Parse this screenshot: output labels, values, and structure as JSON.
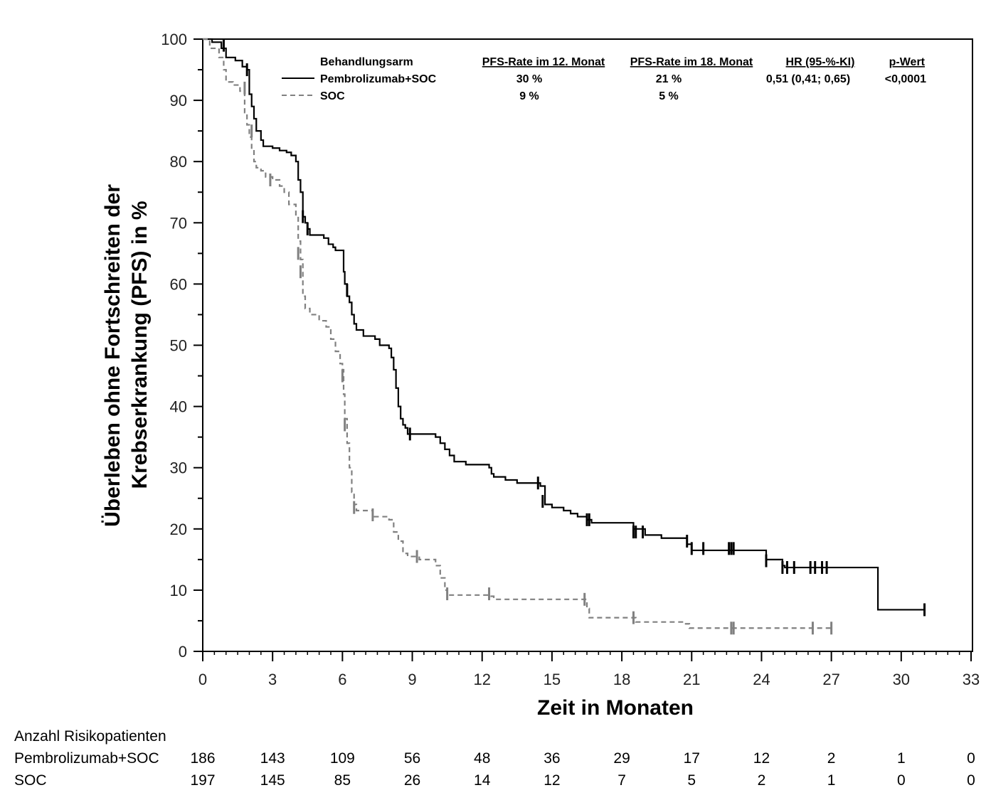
{
  "chart_data": {
    "type": "line",
    "subtype": "kaplan-meier",
    "title": "",
    "xlabel": "Zeit in Monaten",
    "ylabel_lines": [
      "Überleben ohne Fortschreiten der",
      "Krebserkrankung (PFS) in %"
    ],
    "xlim": [
      0,
      33
    ],
    "ylim": [
      0,
      100
    ],
    "x_ticks": [
      0,
      3,
      6,
      9,
      12,
      15,
      18,
      21,
      24,
      27,
      30,
      33
    ],
    "y_ticks": [
      0,
      10,
      20,
      30,
      40,
      50,
      60,
      70,
      80,
      90,
      100
    ],
    "grid": false,
    "legend_placement": "top-right",
    "data_provenance": "Step-curve vertices and censor positions are approximate, estimated from the rendered figure (digitized), not source data. Dense censor clusters are approximated, not individually resolved. Legend table values (PFS rates, HR, p-value) and risk-table counts are read directly from printed labels.",
    "legend": {
      "headers": [
        "Behandlungsarm",
        "PFS-Rate im 12. Monat",
        "PFS-Rate im 18. Monat",
        "HR (95-%-KI)",
        "p-Wert"
      ],
      "rows": [
        {
          "arm": "Pembrolizumab+SOC",
          "style": "solid",
          "pfs12": "30 %",
          "pfs18": "21 %",
          "hr": "0,51 (0,41; 0,65)",
          "p": "<0,0001"
        },
        {
          "arm": "SOC",
          "style": "dashed",
          "pfs12": "9 %",
          "pfs18": "5 %",
          "hr": "",
          "p": ""
        }
      ]
    },
    "series": [
      {
        "name": "Pembrolizumab+SOC",
        "color": "#000000",
        "dash": "none",
        "approximate": true,
        "steps": [
          [
            0,
            100
          ],
          [
            0.4,
            99.5
          ],
          [
            0.8,
            98.5
          ],
          [
            1.0,
            97
          ],
          [
            1.4,
            96.5
          ],
          [
            1.7,
            95.5
          ],
          [
            1.9,
            95
          ],
          [
            2.0,
            91
          ],
          [
            2.1,
            89
          ],
          [
            2.2,
            87
          ],
          [
            2.3,
            85
          ],
          [
            2.5,
            83.5
          ],
          [
            2.6,
            82.5
          ],
          [
            3.0,
            82.2
          ],
          [
            3.3,
            81.8
          ],
          [
            3.6,
            81.5
          ],
          [
            3.8,
            81
          ],
          [
            4.0,
            80
          ],
          [
            4.1,
            77
          ],
          [
            4.2,
            75
          ],
          [
            4.3,
            71
          ],
          [
            4.4,
            70
          ],
          [
            4.5,
            69
          ],
          [
            4.6,
            68
          ],
          [
            5.2,
            67.5
          ],
          [
            5.4,
            66.5
          ],
          [
            5.6,
            66
          ],
          [
            5.7,
            65.5
          ],
          [
            6.0,
            65.5
          ],
          [
            6.05,
            62
          ],
          [
            6.1,
            60
          ],
          [
            6.2,
            58
          ],
          [
            6.3,
            57
          ],
          [
            6.4,
            55
          ],
          [
            6.5,
            53.5
          ],
          [
            6.6,
            52.5
          ],
          [
            6.9,
            51.5
          ],
          [
            7.4,
            51
          ],
          [
            7.6,
            50
          ],
          [
            8.0,
            49.5
          ],
          [
            8.1,
            48
          ],
          [
            8.2,
            46
          ],
          [
            8.3,
            43
          ],
          [
            8.4,
            40
          ],
          [
            8.5,
            38
          ],
          [
            8.6,
            37
          ],
          [
            8.7,
            36.5
          ],
          [
            8.8,
            35.5
          ],
          [
            10.0,
            35
          ],
          [
            10.2,
            34
          ],
          [
            10.4,
            33
          ],
          [
            10.6,
            32
          ],
          [
            10.8,
            31
          ],
          [
            11.3,
            30.5
          ],
          [
            12.3,
            30
          ],
          [
            12.4,
            29
          ],
          [
            12.5,
            28.5
          ],
          [
            13.0,
            28
          ],
          [
            13.5,
            27.5
          ],
          [
            14.5,
            27
          ],
          [
            14.7,
            24
          ],
          [
            15.0,
            23.5
          ],
          [
            15.5,
            23
          ],
          [
            15.8,
            22.5
          ],
          [
            16.1,
            22
          ],
          [
            16.5,
            21.5
          ],
          [
            16.7,
            21
          ],
          [
            18.5,
            20
          ],
          [
            19.0,
            19
          ],
          [
            19.7,
            18.5
          ],
          [
            20.8,
            17.5
          ],
          [
            21.0,
            16.5
          ],
          [
            24.2,
            15
          ],
          [
            24.9,
            14
          ],
          [
            25.0,
            13.7
          ],
          [
            29.0,
            13.7
          ],
          [
            29.0,
            6.8
          ],
          [
            31.0,
            6.8
          ]
        ],
        "censors": [
          [
            0.9,
            99
          ],
          [
            1.9,
            95
          ],
          [
            4.3,
            71
          ],
          [
            4.5,
            69
          ],
          [
            6.2,
            59
          ],
          [
            8.9,
            35.5
          ],
          [
            14.4,
            27.5
          ],
          [
            14.6,
            24.5
          ],
          [
            16.5,
            21.5
          ],
          [
            16.6,
            21.5
          ],
          [
            18.5,
            19.5
          ],
          [
            18.6,
            19.5
          ],
          [
            18.9,
            19.5
          ],
          [
            20.8,
            18
          ],
          [
            21.0,
            16.8
          ],
          [
            21.5,
            16.8
          ],
          [
            22.6,
            16.8
          ],
          [
            22.7,
            16.8
          ],
          [
            22.8,
            16.8
          ],
          [
            24.2,
            14.8
          ],
          [
            24.9,
            13.7
          ],
          [
            25.1,
            13.7
          ],
          [
            25.4,
            13.7
          ],
          [
            26.1,
            13.7
          ],
          [
            26.3,
            13.7
          ],
          [
            26.6,
            13.7
          ],
          [
            26.8,
            13.7
          ],
          [
            31.0,
            6.8
          ]
        ]
      },
      {
        "name": "SOC",
        "color": "#808080",
        "dash": "7,5",
        "approximate": true,
        "steps": [
          [
            0,
            100
          ],
          [
            0.3,
            98.5
          ],
          [
            0.7,
            97
          ],
          [
            0.9,
            95
          ],
          [
            1.0,
            93
          ],
          [
            1.3,
            92.5
          ],
          [
            1.6,
            91.5
          ],
          [
            1.8,
            88
          ],
          [
            1.9,
            86
          ],
          [
            2.0,
            84
          ],
          [
            2.1,
            82
          ],
          [
            2.2,
            80
          ],
          [
            2.3,
            79
          ],
          [
            2.5,
            78.5
          ],
          [
            2.7,
            77.5
          ],
          [
            3.0,
            77
          ],
          [
            3.3,
            76
          ],
          [
            3.5,
            75
          ],
          [
            3.7,
            73
          ],
          [
            4.0,
            71
          ],
          [
            4.1,
            67
          ],
          [
            4.2,
            64
          ],
          [
            4.3,
            58
          ],
          [
            4.4,
            56
          ],
          [
            4.6,
            55
          ],
          [
            5.0,
            54
          ],
          [
            5.3,
            53
          ],
          [
            5.5,
            51
          ],
          [
            5.7,
            49
          ],
          [
            5.9,
            47
          ],
          [
            6.0,
            46
          ],
          [
            6.05,
            42
          ],
          [
            6.1,
            38
          ],
          [
            6.2,
            34
          ],
          [
            6.3,
            30
          ],
          [
            6.4,
            26
          ],
          [
            6.5,
            24
          ],
          [
            6.6,
            23
          ],
          [
            7.3,
            22
          ],
          [
            8.0,
            21.5
          ],
          [
            8.2,
            19.5
          ],
          [
            8.4,
            18
          ],
          [
            8.6,
            16
          ],
          [
            8.8,
            15.5
          ],
          [
            9.3,
            15
          ],
          [
            10.0,
            14
          ],
          [
            10.2,
            12
          ],
          [
            10.4,
            10
          ],
          [
            10.5,
            9.2
          ],
          [
            12.3,
            9
          ],
          [
            12.5,
            8.5
          ],
          [
            16.3,
            8.5
          ],
          [
            16.5,
            7
          ],
          [
            16.6,
            5.5
          ],
          [
            18.5,
            5.5
          ],
          [
            18.6,
            4.8
          ],
          [
            20.7,
            4.5
          ],
          [
            20.9,
            3.8
          ],
          [
            27.0,
            3.8
          ]
        ],
        "censors": [
          [
            1.8,
            92
          ],
          [
            2.1,
            85
          ],
          [
            2.9,
            77
          ],
          [
            4.1,
            65
          ],
          [
            4.2,
            62
          ],
          [
            6.0,
            45
          ],
          [
            6.1,
            37
          ],
          [
            6.5,
            23.5
          ],
          [
            7.3,
            22.3
          ],
          [
            9.2,
            15.5
          ],
          [
            10.5,
            9.4
          ],
          [
            12.3,
            9.4
          ],
          [
            16.4,
            8.5
          ],
          [
            18.5,
            5.5
          ],
          [
            22.7,
            3.8
          ],
          [
            22.8,
            3.8
          ],
          [
            26.2,
            3.8
          ],
          [
            27.0,
            3.8
          ]
        ]
      }
    ],
    "risk_table": {
      "title": "Anzahl Risikopatienten",
      "times": [
        0,
        3,
        6,
        9,
        12,
        15,
        18,
        21,
        24,
        27,
        30,
        33
      ],
      "rows": [
        {
          "label": "Pembrolizumab+SOC",
          "values": [
            186,
            143,
            109,
            56,
            48,
            36,
            29,
            17,
            12,
            2,
            1,
            0
          ]
        },
        {
          "label": "SOC",
          "values": [
            197,
            145,
            85,
            26,
            14,
            12,
            7,
            5,
            2,
            1,
            0,
            0
          ]
        }
      ]
    }
  }
}
